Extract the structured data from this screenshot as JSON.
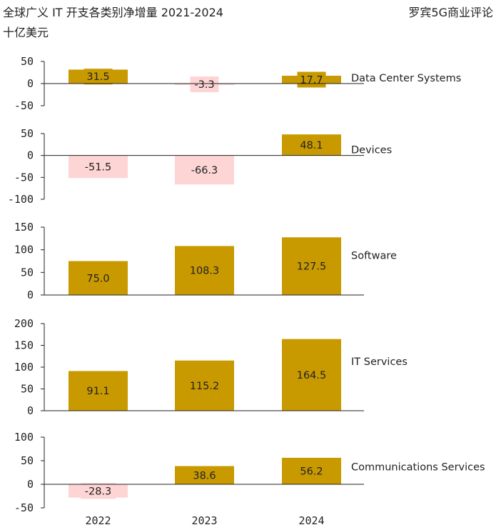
{
  "chart_data": {
    "type": "bar",
    "title": "全球广义 IT 开支各类别净增量 2021-2024",
    "subtitle": "十亿美元",
    "source": "罗宾5G商业评论",
    "categories": [
      "2022",
      "2023",
      "2024"
    ],
    "colors": {
      "positive": "#C89A00",
      "negative": "#FDD5D5",
      "positive_label": "#FFFFFF",
      "negative_label": "#222222"
    },
    "panels": [
      {
        "name": "Data Center Systems",
        "values": [
          31.5,
          -3.3,
          17.7
        ],
        "labels": [
          "31.5",
          "-3.3",
          "17.7"
        ],
        "ylim": [
          -50,
          50
        ],
        "yticks": [
          50,
          0,
          -50
        ]
      },
      {
        "name": "Devices",
        "values": [
          -51.5,
          -66.3,
          48.1
        ],
        "labels": [
          "-51.5",
          "-66.3",
          "48.1"
        ],
        "ylim": [
          -100,
          50
        ],
        "yticks": [
          50,
          0,
          -50,
          -100
        ]
      },
      {
        "name": "Software",
        "values": [
          75.0,
          108.3,
          127.5
        ],
        "labels": [
          "75.0",
          "108.3",
          "127.5"
        ],
        "ylim": [
          0,
          150
        ],
        "yticks": [
          150,
          100,
          50,
          0
        ]
      },
      {
        "name": "IT Services",
        "values": [
          91.1,
          115.2,
          164.5
        ],
        "labels": [
          "91.1",
          "115.2",
          "164.5"
        ],
        "ylim": [
          0,
          200
        ],
        "yticks": [
          200,
          150,
          100,
          50,
          0
        ]
      },
      {
        "name": "Communications Services",
        "values": [
          -28.3,
          38.6,
          56.2
        ],
        "labels": [
          "-28.3",
          "38.6",
          "56.2"
        ],
        "ylim": [
          -50,
          100
        ],
        "yticks": [
          100,
          50,
          0,
          -50
        ]
      }
    ]
  }
}
